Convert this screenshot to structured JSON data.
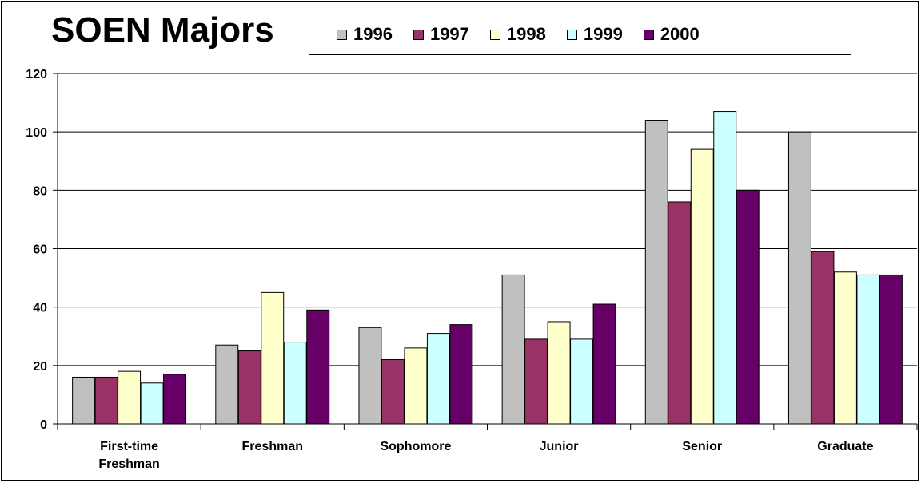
{
  "chart_data": {
    "type": "bar",
    "title": "SOEN Majors",
    "categories": [
      [
        "First-time",
        "Freshman"
      ],
      [
        "Freshman"
      ],
      [
        "Sophomore"
      ],
      [
        "Junior"
      ],
      [
        "Senior"
      ],
      [
        "Graduate"
      ]
    ],
    "series": [
      {
        "name": "1996",
        "color": "#c0c0c0",
        "values": [
          16,
          27,
          33,
          51,
          104,
          100
        ]
      },
      {
        "name": "1997",
        "color": "#993366",
        "values": [
          16,
          25,
          22,
          29,
          76,
          59
        ]
      },
      {
        "name": "1998",
        "color": "#ffffcc",
        "values": [
          18,
          45,
          26,
          35,
          94,
          52
        ]
      },
      {
        "name": "1999",
        "color": "#ccffff",
        "values": [
          14,
          28,
          31,
          29,
          107,
          51
        ]
      },
      {
        "name": "2000",
        "color": "#660066",
        "values": [
          17,
          39,
          34,
          41,
          80,
          51
        ]
      }
    ],
    "ylim": [
      0,
      120
    ],
    "yticks": [
      0,
      20,
      40,
      60,
      80,
      100,
      120
    ],
    "grid": true,
    "legend": "top"
  }
}
